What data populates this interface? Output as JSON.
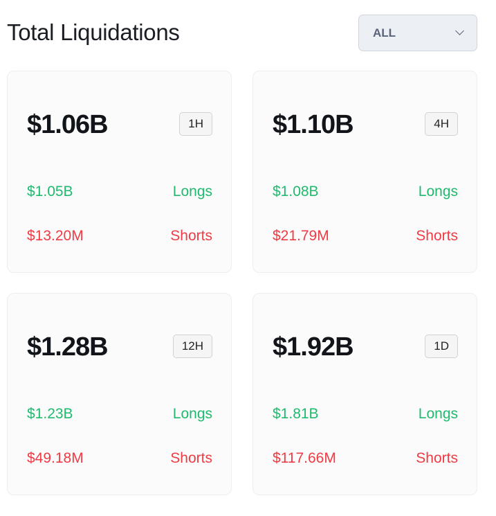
{
  "header": {
    "title": "Total Liquidations",
    "filter": {
      "selected": "ALL",
      "icon": "chevron-down-icon"
    }
  },
  "colors": {
    "longs": "#1fba6e",
    "shorts": "#ef3b43"
  },
  "cards": [
    {
      "total": "$1.06B",
      "period": "1H",
      "longs": "$1.05B",
      "longs_label": "Longs",
      "shorts": "$13.20M",
      "shorts_label": "Shorts"
    },
    {
      "total": "$1.10B",
      "period": "4H",
      "longs": "$1.08B",
      "longs_label": "Longs",
      "shorts": "$21.79M",
      "shorts_label": "Shorts"
    },
    {
      "total": "$1.28B",
      "period": "12H",
      "longs": "$1.23B",
      "longs_label": "Longs",
      "shorts": "$49.18M",
      "shorts_label": "Shorts"
    },
    {
      "total": "$1.92B",
      "period": "1D",
      "longs": "$1.81B",
      "longs_label": "Longs",
      "shorts": "$117.66M",
      "shorts_label": "Shorts"
    }
  ]
}
